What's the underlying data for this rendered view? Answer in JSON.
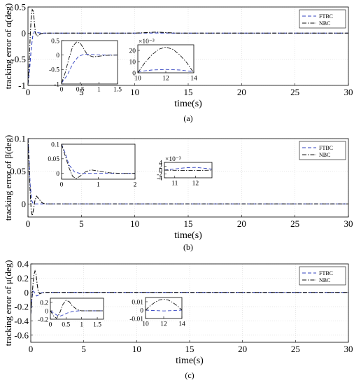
{
  "figure": {
    "legend_labels": [
      "FTBC",
      "NBC"
    ],
    "colors": {
      "FTBC": "#2f3fbf",
      "NBC": "#111111"
    }
  },
  "chart_data": [
    {
      "type": "line",
      "panel_label": "(a)",
      "xlabel": "time(s)",
      "ylabel": "tracking error of α(deg)",
      "xlim": [
        0,
        30
      ],
      "ylim": [
        -1,
        0.5
      ],
      "xticks": [
        0,
        5,
        10,
        15,
        20,
        25,
        30
      ],
      "yticks": [
        -1,
        -0.5,
        0,
        0.5
      ],
      "grid": true,
      "legend": "top-right",
      "series": [
        {
          "name": "FTBC",
          "style": "dashed",
          "x": [
            0,
            0.15,
            0.3,
            0.45,
            0.6,
            0.8,
            1.0,
            1.3,
            1.6,
            2.5,
            5,
            10,
            12,
            14,
            20,
            25,
            30
          ],
          "y": [
            -0.97,
            -0.7,
            -0.3,
            -0.05,
            0.03,
            0.02,
            0.005,
            0,
            0,
            0,
            0,
            0,
            0.003,
            0,
            0,
            0,
            0
          ]
        },
        {
          "name": "NBC",
          "style": "dashdot",
          "x": [
            0,
            0.1,
            0.2,
            0.3,
            0.4,
            0.5,
            0.6,
            0.7,
            0.85,
            1.0,
            1.2,
            1.5,
            2,
            3,
            5,
            10,
            12,
            14,
            20,
            25,
            30
          ],
          "y": [
            -0.97,
            -0.6,
            -0.1,
            0.3,
            0.45,
            0.42,
            0.2,
            0.0,
            -0.06,
            -0.04,
            -0.01,
            0,
            0,
            0,
            0,
            0,
            0.02,
            0,
            0,
            0,
            0
          ]
        }
      ],
      "insets": [
        {
          "xlim": [
            0,
            1.5
          ],
          "ylim": [
            -1,
            0.5
          ],
          "xticks": [
            0,
            0.5,
            1,
            1.5
          ],
          "yticks": [
            -1,
            -0.5,
            0,
            0.5
          ],
          "series": [
            {
              "name": "FTBC",
              "x": [
                0,
                0.15,
                0.3,
                0.45,
                0.6,
                0.8,
                1.0,
                1.2,
                1.5
              ],
              "y": [
                -0.97,
                -0.7,
                -0.3,
                -0.05,
                0.03,
                0.02,
                0.005,
                0,
                0
              ]
            },
            {
              "name": "NBC",
              "x": [
                0,
                0.1,
                0.2,
                0.3,
                0.4,
                0.5,
                0.6,
                0.7,
                0.85,
                1.0,
                1.2,
                1.5
              ],
              "y": [
                -0.97,
                -0.6,
                -0.1,
                0.3,
                0.45,
                0.42,
                0.2,
                0.0,
                -0.06,
                -0.04,
                -0.01,
                0
              ]
            }
          ]
        },
        {
          "xlim": [
            10,
            14
          ],
          "ylim": [
            0,
            25
          ],
          "exponent": "×10⁻³",
          "xticks": [
            10,
            12,
            14
          ],
          "yticks": [
            0,
            10,
            20
          ],
          "series": [
            {
              "name": "FTBC",
              "x": [
                10,
                11,
                12,
                13,
                14
              ],
              "y": [
                1,
                2.5,
                3,
                2.5,
                1
              ]
            },
            {
              "name": "NBC",
              "x": [
                10,
                10.5,
                11,
                11.5,
                12,
                12.5,
                13,
                13.5,
                14
              ],
              "y": [
                0,
                9,
                16,
                21,
                23,
                21,
                16,
                9,
                0
              ]
            }
          ]
        }
      ]
    },
    {
      "type": "line",
      "panel_label": "(b)",
      "xlabel": "time(s)",
      "ylabel": "tracking error of β(deg)",
      "xlim": [
        0,
        30
      ],
      "ylim": [
        -0.02,
        0.1
      ],
      "xticks": [
        0,
        5,
        10,
        15,
        20,
        25,
        30
      ],
      "yticks": [
        0,
        0.05,
        0.1
      ],
      "grid": true,
      "legend": "top-right",
      "series": [
        {
          "name": "FTBC",
          "style": "dashed",
          "x": [
            0,
            0.1,
            0.2,
            0.35,
            0.5,
            0.7,
            1.0,
            1.5,
            3,
            10,
            15,
            20,
            25,
            30
          ],
          "y": [
            0.1,
            0.07,
            0.03,
            0.005,
            0,
            0,
            0,
            0,
            0,
            0,
            0,
            0,
            0,
            0
          ]
        },
        {
          "name": "NBC",
          "style": "dashdot",
          "x": [
            0,
            0.1,
            0.2,
            0.3,
            0.4,
            0.5,
            0.65,
            0.8,
            1.0,
            1.3,
            1.6,
            2,
            3,
            10,
            20,
            30
          ],
          "y": [
            0.1,
            0.06,
            0.02,
            -0.01,
            -0.018,
            -0.01,
            0.005,
            0.012,
            0.008,
            0.002,
            0,
            0,
            0,
            0,
            0,
            0
          ]
        }
      ],
      "insets": [
        {
          "xlim": [
            0,
            2
          ],
          "ylim": [
            -0.02,
            0.1
          ],
          "xticks": [
            0,
            1,
            2
          ],
          "yticks": [
            0,
            0.05,
            0.1
          ],
          "series": [
            {
              "name": "FTBC",
              "x": [
                0,
                0.1,
                0.2,
                0.35,
                0.5,
                0.7,
                1.0,
                1.5,
                2
              ],
              "y": [
                0.1,
                0.07,
                0.03,
                0.005,
                0,
                0,
                0,
                0,
                0
              ]
            },
            {
              "name": "NBC",
              "x": [
                0,
                0.1,
                0.2,
                0.3,
                0.4,
                0.5,
                0.65,
                0.8,
                1.0,
                1.3,
                1.6,
                2
              ],
              "y": [
                0.1,
                0.06,
                0.02,
                -0.01,
                -0.018,
                -0.01,
                0.005,
                0.012,
                0.008,
                0.002,
                0,
                0
              ]
            }
          ]
        },
        {
          "xlim": [
            10.5,
            12.8
          ],
          "ylim": [
            -4,
            4
          ],
          "exponent": "×10⁻³",
          "xticks": [
            11,
            12
          ],
          "yticks": [
            -4,
            -2,
            0,
            2,
            4
          ],
          "series": [
            {
              "name": "FTBC",
              "x": [
                10.5,
                11,
                11.5,
                12,
                12.5,
                12.8
              ],
              "y": [
                0,
                0.6,
                1.2,
                1.4,
                0.9,
                0.5
              ]
            },
            {
              "name": "NBC",
              "x": [
                10.5,
                11,
                11.5,
                12,
                12.5,
                12.8
              ],
              "y": [
                0,
                -0.1,
                -0.2,
                -0.2,
                -0.1,
                0
              ]
            }
          ]
        }
      ]
    },
    {
      "type": "line",
      "panel_label": "(c)",
      "xlabel": "time(s)",
      "ylabel": "tracking error of μ(deg)",
      "xlim": [
        0,
        30
      ],
      "ylim": [
        -0.7,
        0.4
      ],
      "xticks": [
        0,
        5,
        10,
        15,
        20,
        25,
        30
      ],
      "yticks": [
        -0.6,
        -0.4,
        -0.2,
        0,
        0.2,
        0.4
      ],
      "grid": true,
      "legend": "top-right",
      "series": [
        {
          "name": "FTBC",
          "style": "dashed",
          "x": [
            0,
            0.1,
            0.2,
            0.3,
            0.4,
            0.55,
            0.7,
            0.9,
            1.2,
            1.6,
            3,
            10,
            20,
            30
          ],
          "y": [
            -0.3,
            -0.1,
            0.02,
            0.01,
            -0.02,
            -0.05,
            -0.04,
            -0.01,
            0,
            0,
            0,
            0,
            0,
            0
          ]
        },
        {
          "name": "NBC",
          "style": "dashdot",
          "x": [
            0,
            0.1,
            0.2,
            0.3,
            0.4,
            0.5,
            0.6,
            0.7,
            0.85,
            1.0,
            1.3,
            1.6,
            2,
            3,
            10,
            20,
            30
          ],
          "y": [
            -0.3,
            -0.1,
            0.1,
            0.25,
            0.3,
            0.25,
            0.12,
            0.02,
            -0.02,
            -0.01,
            0,
            0,
            0,
            0,
            0,
            0,
            0
          ]
        }
      ],
      "insets": [
        {
          "xlim": [
            0,
            1.7
          ],
          "ylim": [
            -0.2,
            0.3
          ],
          "xticks": [
            0,
            0.5,
            1,
            1.5
          ],
          "yticks": [
            -0.2,
            0,
            0.2
          ],
          "series": [
            {
              "name": "FTBC",
              "x": [
                0,
                0.1,
                0.2,
                0.3,
                0.4,
                0.55,
                0.7,
                0.9,
                1.2,
                1.7
              ],
              "y": [
                0.0,
                -0.05,
                -0.1,
                -0.13,
                -0.1,
                -0.05,
                -0.02,
                0,
                0,
                0
              ]
            },
            {
              "name": "NBC",
              "x": [
                0,
                0.1,
                0.2,
                0.3,
                0.4,
                0.5,
                0.6,
                0.7,
                0.85,
                1.0,
                1.3,
                1.7
              ],
              "y": [
                0.0,
                -0.12,
                -0.18,
                -0.05,
                0.15,
                0.25,
                0.22,
                0.12,
                0.03,
                0,
                0,
                0
              ]
            }
          ]
        },
        {
          "xlim": [
            10,
            14
          ],
          "ylim": [
            -0.01,
            0.015
          ],
          "xticks": [
            10,
            12,
            14
          ],
          "yticks": [
            -0.01,
            0,
            0.01
          ],
          "series": [
            {
              "name": "FTBC",
              "x": [
                10,
                11,
                12,
                13,
                14
              ],
              "y": [
                0,
                -0.0005,
                -0.001,
                -0.0005,
                0
              ]
            },
            {
              "name": "NBC",
              "x": [
                10,
                10.5,
                11,
                11.5,
                12,
                12.5,
                13,
                13.5,
                14
              ],
              "y": [
                0,
                0.005,
                0.009,
                0.012,
                0.013,
                0.012,
                0.009,
                0.005,
                0
              ]
            }
          ]
        }
      ]
    }
  ]
}
